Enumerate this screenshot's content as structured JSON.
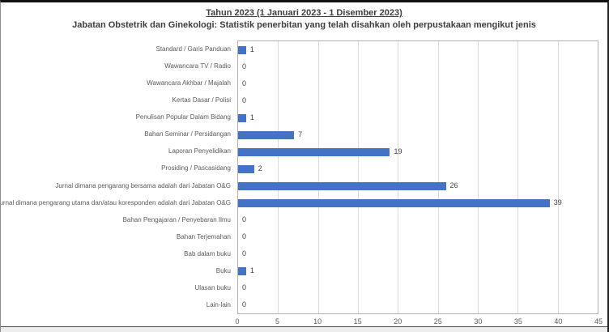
{
  "page": {
    "title": "Tahun 2023 (1 Januari 2023 - 1 Disember 2023)",
    "subtitle": "Jabatan Obstetrik dan Ginekologi: Statistik penerbitan yang telah disahkan oleh perpustakaan mengikut jenis"
  },
  "chart_data": {
    "type": "bar",
    "orientation": "horizontal",
    "title": "Tahun 2023 (1 Januari 2023 - 1 Disember 2023)",
    "subtitle": "Jabatan Obstetrik dan Ginekologi: Statistik penerbitan yang telah disahkan oleh perpustakaan mengikut jenis",
    "categories": [
      "Standard / Garis Panduan",
      "Wawancara TV / Radio",
      "Wawancara Akhbar / Majalah",
      "Kertas Dasar / Polisi",
      "Penulisan Popular Dalam Bidang",
      "Bahan Seminar / Persidangan",
      "Laporan Penyelidikan",
      "Prosiding / Pascasidang",
      "Jurnal dimana pengarang bersama adalah dari Jabatan O&G",
      "Jurnal dimana pengarang utama dan/atau koresponden adalah dari Jabatan O&G",
      "Bahan Pengajaran / Penyebaran Ilmu",
      "Bahan Terjemahan",
      "Bab dalam buku",
      "Buku",
      "Ulasan buku",
      "Lain-lain"
    ],
    "values": [
      1,
      0,
      0,
      0,
      1,
      7,
      19,
      2,
      26,
      39,
      0,
      0,
      0,
      1,
      0,
      0
    ],
    "xlabel": "",
    "ylabel": "",
    "xlim": [
      0,
      45
    ],
    "xticks": [
      0,
      5,
      10,
      15,
      20,
      25,
      30,
      35,
      40,
      45
    ],
    "grid": "vertical-gridlines-on",
    "legend": "none",
    "data_labels": "shown-at-bar-end",
    "colors": {
      "bar": "#4472C4",
      "gridline": "#D9D9D9",
      "plot_border": "#B0B0B0",
      "category_text": "#595959",
      "tick_text": "#595959",
      "value_text": "#404040",
      "title_text": "#3D3D3D"
    }
  }
}
